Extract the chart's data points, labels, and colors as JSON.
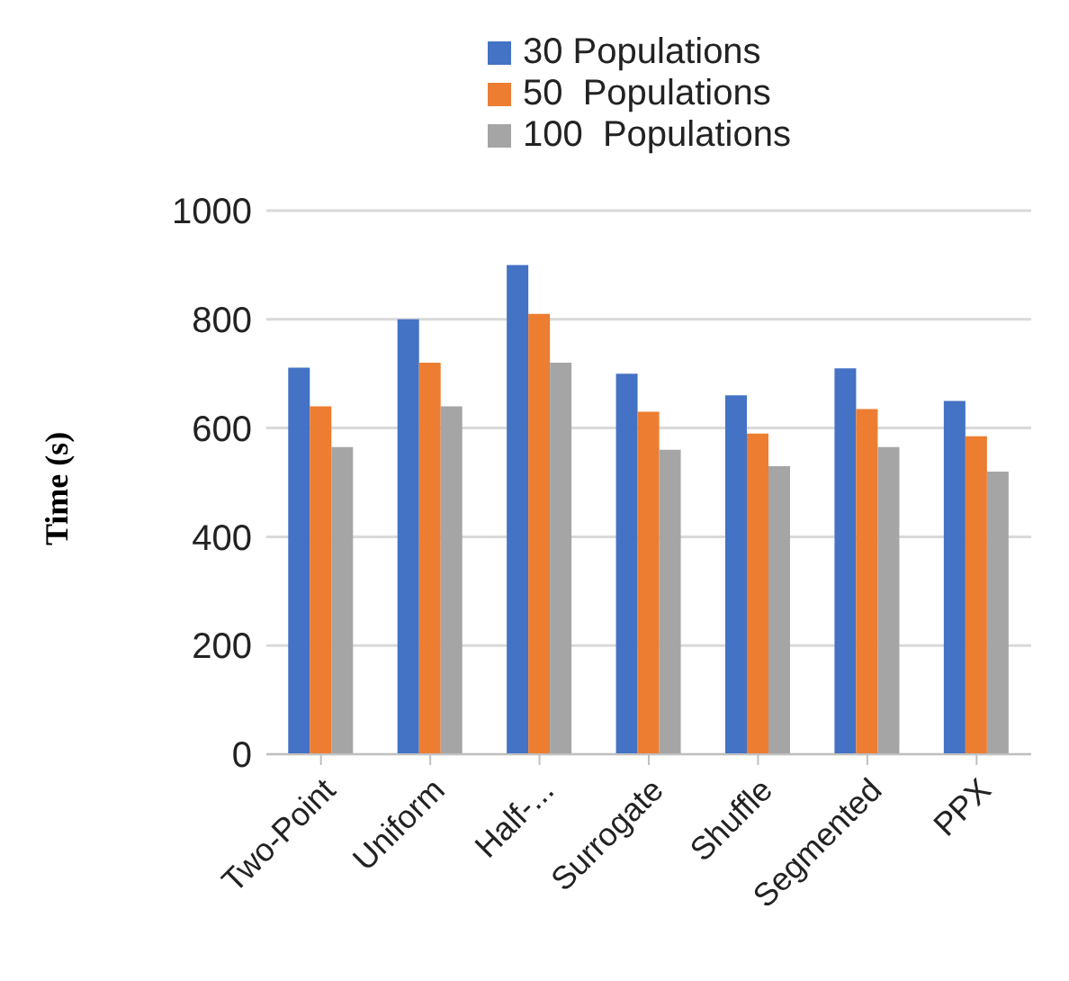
{
  "chart_data": {
    "type": "bar",
    "ylabel": "Time (s)",
    "categories": [
      "Two-Point",
      "Uniform",
      "Half-...",
      "Surrogate",
      "Shuffle",
      "Segmented",
      "PPX"
    ],
    "series": [
      {
        "name": "30 Populations",
        "color": "#4472c4",
        "values": [
          711,
          800,
          900,
          700,
          660,
          710,
          650
        ]
      },
      {
        "name": "50  Populations",
        "color": "#ed7d31",
        "values": [
          640,
          720,
          810,
          630,
          590,
          635,
          585
        ]
      },
      {
        "name": "100  Populations",
        "color": "#a5a5a5",
        "values": [
          565,
          640,
          720,
          560,
          530,
          565,
          520
        ]
      }
    ],
    "ylim": [
      0,
      1000
    ],
    "yticks": [
      0,
      200,
      400,
      600,
      800,
      1000
    ],
    "grid": "y",
    "legend": "top"
  }
}
